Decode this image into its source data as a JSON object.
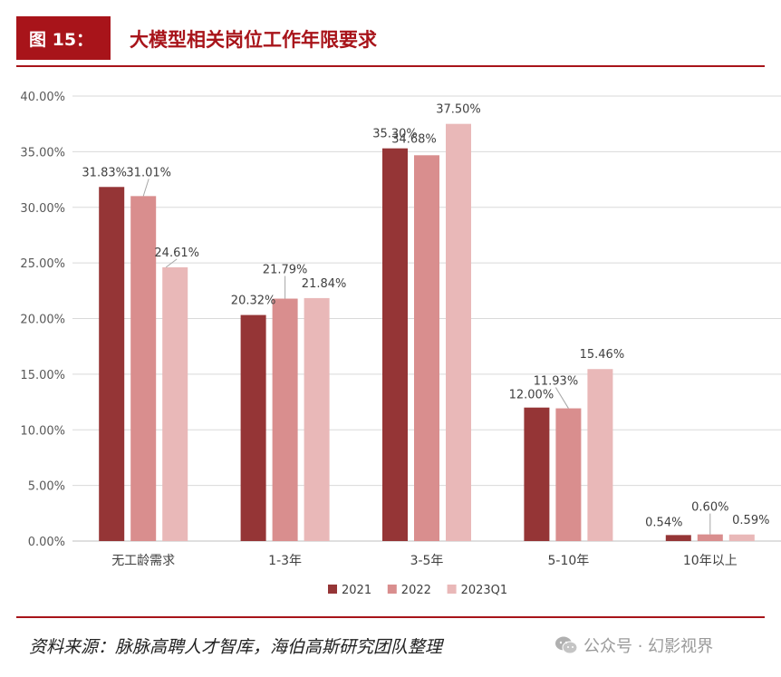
{
  "header": {
    "figure_label": "图 15：",
    "figure_title": "大模型相关岗位工作年限要求"
  },
  "footer": {
    "source": "资料来源：脉脉高聘人才智库，海伯高斯研究团队整理",
    "watermark": "公众号 · 幻影视界"
  },
  "colors": {
    "accent": "#a8141a",
    "series_2021": "#953536",
    "series_2022": "#d98e8e",
    "series_2023Q1": "#e9b8b8"
  },
  "chart_data": {
    "type": "bar",
    "categories": [
      "无工龄需求",
      "1-3年",
      "3-5年",
      "5-10年",
      "10年以上"
    ],
    "series": [
      {
        "name": "2021",
        "values": [
          31.83,
          20.32,
          35.3,
          12.0,
          0.54
        ]
      },
      {
        "name": "2022",
        "values": [
          31.01,
          21.79,
          34.68,
          11.93,
          0.6
        ]
      },
      {
        "name": "2023Q1",
        "values": [
          24.61,
          21.84,
          37.5,
          15.46,
          0.59
        ]
      }
    ],
    "value_labels": [
      [
        "31.83%",
        "20.32%",
        "35.30%",
        "12.00%",
        "0.54%"
      ],
      [
        "31.01%",
        "21.79%",
        "34.68%",
        "11.93%",
        "0.60%"
      ],
      [
        "24.61%",
        "21.84%",
        "37.50%",
        "15.46%",
        "0.59%"
      ]
    ],
    "yticks": [
      "0.00%",
      "5.00%",
      "10.00%",
      "15.00%",
      "20.00%",
      "25.00%",
      "30.00%",
      "35.00%",
      "40.00%"
    ],
    "ylim": [
      0,
      40
    ],
    "grid": true,
    "legend_position": "bottom-center"
  }
}
